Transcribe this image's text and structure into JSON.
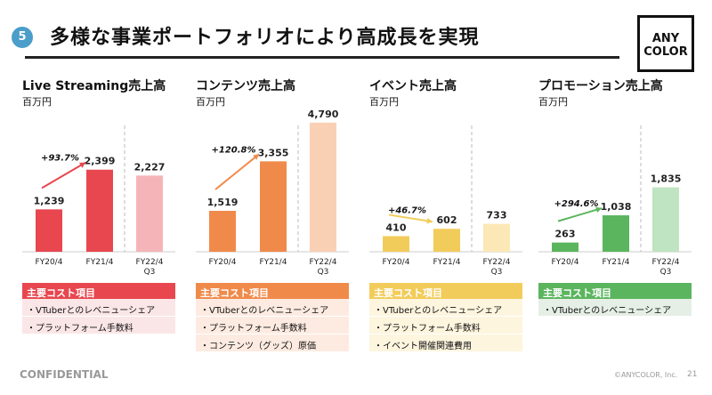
{
  "header": {
    "section_number": "5",
    "title": "多様な事業ポートフォリオにより高成長を実現",
    "logo": "ANY COLOR"
  },
  "cost_header": "主要コスト項目",
  "panels": [
    {
      "title": "Live Streaming売上高",
      "unit": "百万円",
      "color": "#e8474f",
      "light": "#f5b5b8",
      "tint": "#fbe6e7",
      "growth": "+93.7%",
      "costs": [
        "VTuberとのレベニューシェア",
        "プラットフォーム手数料"
      ]
    },
    {
      "title": "コンテンツ売上高",
      "unit": "百万円",
      "color": "#f08a4b",
      "light": "#fad0b4",
      "tint": "#fdebe1",
      "growth": "+120.8%",
      "costs": [
        "VTuberとのレベニューシェア",
        "プラットフォーム手数料",
        "コンテンツ（グッズ）原価"
      ]
    },
    {
      "title": "イベント売上高",
      "unit": "百万円",
      "color": "#f2cc5b",
      "light": "#fbe8b6",
      "tint": "#fdf5de",
      "growth": "+46.7%",
      "costs": [
        "VTuberとのレベニューシェア",
        "プラットフォーム手数料",
        "イベント開催関連費用"
      ]
    },
    {
      "title": "プロモーション売上高",
      "unit": "百万円",
      "color": "#5bb55e",
      "light": "#bfe4c1",
      "tint": "#e6efe6",
      "growth": "+294.6%",
      "costs": [
        "VTuberとのレベニューシェア"
      ]
    }
  ],
  "chart_data": [
    {
      "type": "bar",
      "title": "Live Streaming売上高",
      "ylabel": "百万円",
      "categories": [
        "FY20/4",
        "FY21/4",
        "FY22/4 Q3"
      ],
      "values": [
        1239,
        2399,
        2227
      ],
      "labels": [
        "1,239",
        "2,399",
        "2,227"
      ],
      "ylim": [
        0,
        3900
      ]
    },
    {
      "type": "bar",
      "title": "コンテンツ売上高",
      "ylabel": "百万円",
      "categories": [
        "FY20/4",
        "FY21/4",
        "FY22/4 Q3"
      ],
      "values": [
        1519,
        3355,
        4790
      ],
      "labels": [
        "1,519",
        "3,355",
        "4,790"
      ],
      "ylim": [
        0,
        4950
      ]
    },
    {
      "type": "bar",
      "title": "イベント売上高",
      "ylabel": "百万円",
      "categories": [
        "FY20/4",
        "FY21/4",
        "FY22/4 Q3"
      ],
      "values": [
        410,
        602,
        733
      ],
      "labels": [
        "410",
        "602",
        "733"
      ],
      "ylim": [
        0,
        3500
      ]
    },
    {
      "type": "bar",
      "title": "プロモーション売上高",
      "ylabel": "百万円",
      "categories": [
        "FY20/4",
        "FY21/4",
        "FY22/4 Q3"
      ],
      "values": [
        263,
        1038,
        1835
      ],
      "labels": [
        "263",
        "1,038",
        "1,835"
      ],
      "ylim": [
        0,
        3800
      ]
    }
  ],
  "footer": {
    "confidential": "CONFIDENTIAL",
    "copyright": "©ANYCOLOR, Inc.",
    "page": "21"
  }
}
